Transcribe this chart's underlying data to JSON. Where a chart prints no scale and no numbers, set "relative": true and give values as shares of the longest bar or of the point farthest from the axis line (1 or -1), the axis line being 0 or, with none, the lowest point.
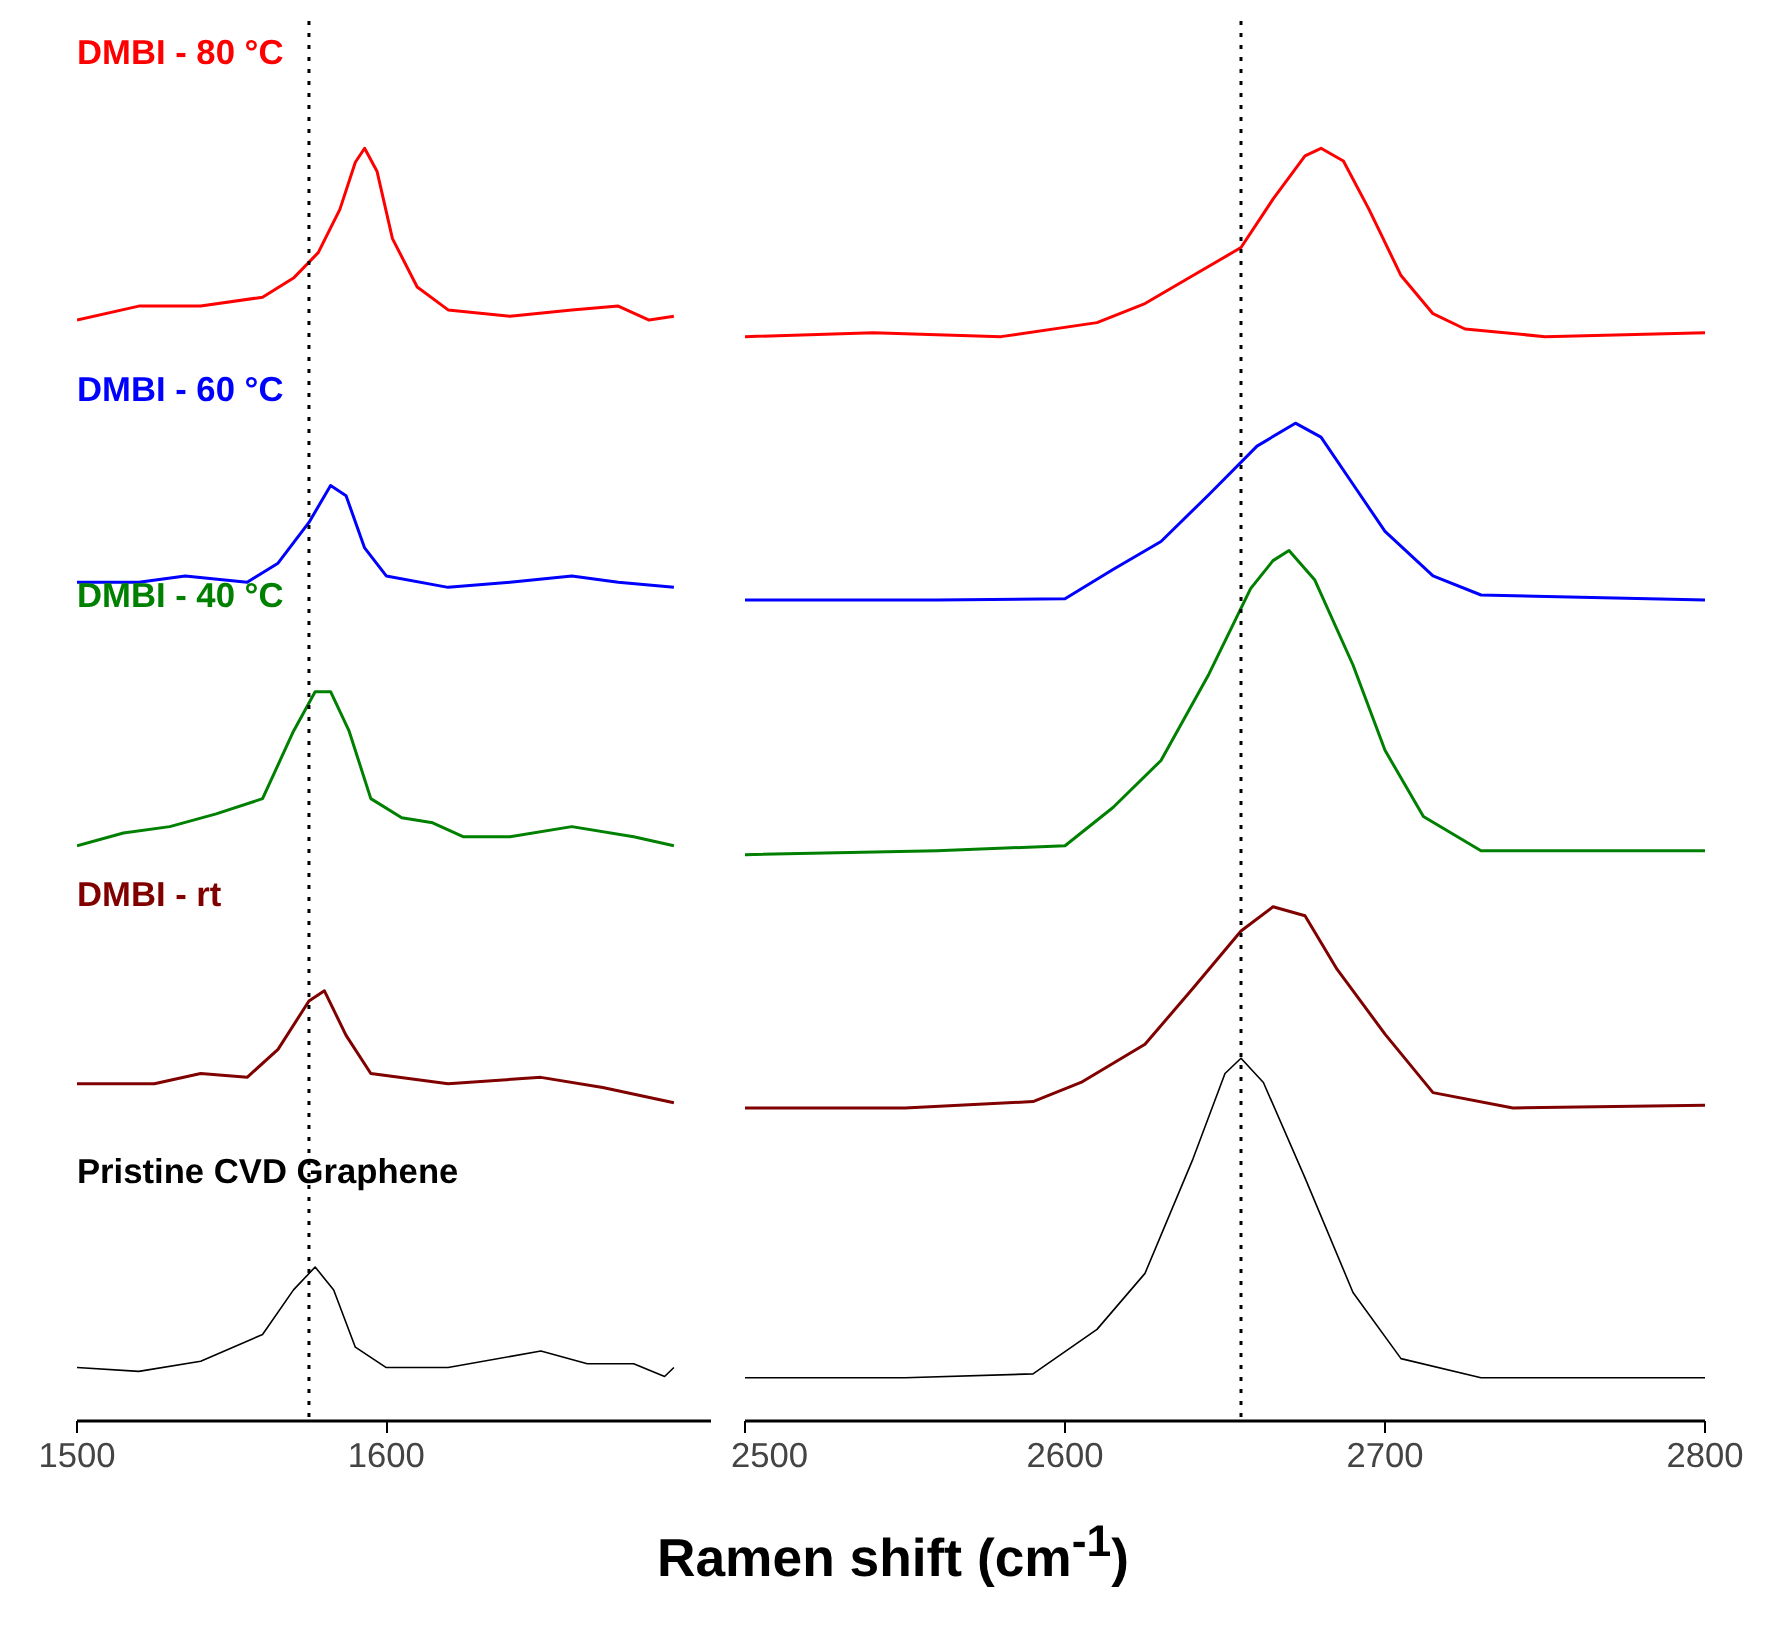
{
  "chart_data": [
    {
      "type": "line",
      "relative": true,
      "xlim": [
        1500,
        1705
      ],
      "xticks": [
        1500,
        1600
      ],
      "grid": false,
      "legend": false,
      "line_style": "solid",
      "marker": "none",
      "ref_lines": [
        {
          "axis": "x",
          "value": 1575,
          "color": "#000000",
          "line_style": "dotted"
        }
      ],
      "series": [
        {
          "name": "DMBI - 80 °C",
          "color": "#ff0000",
          "x": [
            1500,
            1520,
            1540,
            1560,
            1570,
            1578,
            1585,
            1590,
            1593,
            1597,
            1602,
            1610,
            1620,
            1640,
            1660,
            1675,
            1685,
            1693
          ],
          "values": [
            0.865,
            0.876,
            0.876,
            0.883,
            0.898,
            0.918,
            0.952,
            0.989,
            1.0,
            0.982,
            0.929,
            0.891,
            0.873,
            0.868,
            0.873,
            0.876,
            0.865,
            0.868
          ]
        },
        {
          "name": "DMBI - 60 °C",
          "color": "#0000ff",
          "x": [
            1500,
            1520,
            1535,
            1555,
            1565,
            1575,
            1582,
            1587,
            1593,
            1600,
            1620,
            1640,
            1660,
            1675,
            1693
          ],
          "values": [
            0.659,
            0.659,
            0.664,
            0.659,
            0.674,
            0.706,
            0.735,
            0.727,
            0.686,
            0.664,
            0.655,
            0.659,
            0.664,
            0.659,
            0.655
          ]
        },
        {
          "name": "DMBI - 40 °C",
          "color": "#008000",
          "x": [
            1500,
            1515,
            1530,
            1545,
            1560,
            1570,
            1577,
            1582,
            1588,
            1595,
            1605,
            1615,
            1625,
            1640,
            1660,
            1680,
            1693
          ],
          "values": [
            0.452,
            0.462,
            0.467,
            0.477,
            0.489,
            0.542,
            0.573,
            0.573,
            0.542,
            0.489,
            0.474,
            0.47,
            0.459,
            0.459,
            0.467,
            0.459,
            0.452
          ]
        },
        {
          "name": "DMBI - rt",
          "color": "#800000",
          "x": [
            1500,
            1525,
            1540,
            1555,
            1565,
            1575,
            1580,
            1587,
            1595,
            1620,
            1650,
            1670,
            1693
          ],
          "values": [
            0.265,
            0.265,
            0.273,
            0.27,
            0.292,
            0.33,
            0.338,
            0.303,
            0.273,
            0.265,
            0.27,
            0.262,
            0.25
          ]
        },
        {
          "name": "Pristine CVD Graphene",
          "color": "#000000",
          "x": [
            1500,
            1520,
            1540,
            1560,
            1570,
            1577,
            1583,
            1590,
            1600,
            1620,
            1650,
            1665,
            1680,
            1690,
            1693
          ],
          "values": [
            0.042,
            0.039,
            0.047,
            0.068,
            0.103,
            0.121,
            0.103,
            0.058,
            0.042,
            0.042,
            0.055,
            0.045,
            0.045,
            0.035,
            0.042
          ]
        }
      ]
    },
    {
      "type": "line",
      "relative": true,
      "xlim": [
        2500,
        2800
      ],
      "xticks": [
        2500,
        2600,
        2700,
        2800
      ],
      "grid": false,
      "legend": false,
      "line_style": "solid",
      "marker": "none",
      "xlabel": "Ramen shift (cm$^{-1}$)",
      "ref_lines": [
        {
          "axis": "x",
          "value": 2655,
          "color": "#000000",
          "line_style": "dotted"
        }
      ],
      "series": [
        {
          "color": "#ff0000",
          "x": [
            2500,
            2540,
            2580,
            2610,
            2625,
            2640,
            2655,
            2665,
            2675,
            2680,
            2687,
            2695,
            2705,
            2715,
            2725,
            2750,
            2800
          ],
          "values": [
            0.852,
            0.855,
            0.852,
            0.863,
            0.878,
            0.9,
            0.922,
            0.96,
            0.994,
            1.0,
            0.99,
            0.952,
            0.9,
            0.87,
            0.858,
            0.852,
            0.855
          ]
        },
        {
          "color": "#0000ff",
          "x": [
            2500,
            2560,
            2600,
            2615,
            2630,
            2645,
            2660,
            2672,
            2680,
            2690,
            2700,
            2715,
            2730,
            2800
          ],
          "values": [
            0.645,
            0.645,
            0.646,
            0.669,
            0.691,
            0.728,
            0.766,
            0.784,
            0.773,
            0.736,
            0.699,
            0.664,
            0.649,
            0.645
          ]
        },
        {
          "color": "#008000",
          "x": [
            2500,
            2560,
            2600,
            2615,
            2630,
            2645,
            2658,
            2665,
            2670,
            2678,
            2690,
            2700,
            2712,
            2730,
            2800
          ],
          "values": [
            0.445,
            0.448,
            0.452,
            0.482,
            0.519,
            0.587,
            0.654,
            0.676,
            0.684,
            0.661,
            0.594,
            0.527,
            0.475,
            0.448,
            0.448
          ]
        },
        {
          "color": "#800000",
          "x": [
            2500,
            2550,
            2590,
            2605,
            2625,
            2640,
            2655,
            2665,
            2675,
            2685,
            2700,
            2715,
            2740,
            2800
          ],
          "values": [
            0.246,
            0.246,
            0.251,
            0.266,
            0.296,
            0.34,
            0.385,
            0.404,
            0.397,
            0.355,
            0.304,
            0.258,
            0.246,
            0.248
          ]
        },
        {
          "color": "#000000",
          "x": [
            2500,
            2550,
            2590,
            2610,
            2625,
            2640,
            2650,
            2655,
            2662,
            2675,
            2690,
            2705,
            2730,
            2800
          ],
          "values": [
            0.034,
            0.034,
            0.037,
            0.072,
            0.116,
            0.206,
            0.273,
            0.285,
            0.266,
            0.191,
            0.101,
            0.049,
            0.034,
            0.034
          ]
        }
      ]
    }
  ]
}
